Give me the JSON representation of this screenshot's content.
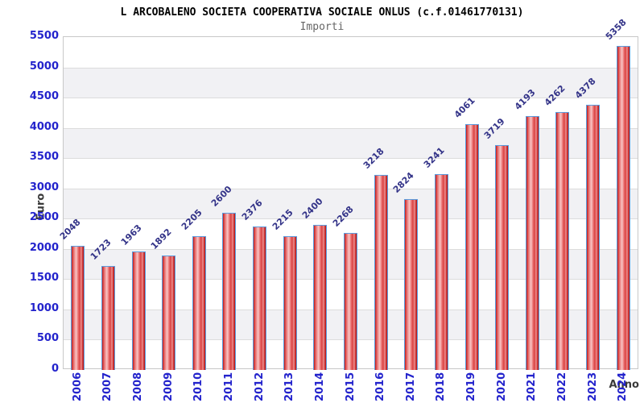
{
  "header": {
    "title": "L ARCOBALENO SOCIETA COOPERATIVA SOCIALE ONLUS (c.f.01461770131)",
    "subtitle": "Importi"
  },
  "chart_data": {
    "type": "bar",
    "title": "L ARCOBALENO SOCIETA COOPERATIVA SOCIALE ONLUS (c.f.01461770131)",
    "subtitle": "Importi",
    "categories": [
      "2006",
      "2007",
      "2008",
      "2009",
      "2010",
      "2011",
      "2012",
      "2013",
      "2014",
      "2015",
      "2016",
      "2017",
      "2018",
      "2019",
      "2020",
      "2021",
      "2022",
      "2023",
      "2024"
    ],
    "values": [
      2048,
      1723,
      1963,
      1892,
      2205,
      2600,
      2376,
      2215,
      2400,
      2268,
      3218,
      2824,
      3241,
      4061,
      3719,
      4193,
      4262,
      4378,
      5358
    ],
    "xlabel": "Anno",
    "ylabel": "Euro",
    "ylim": [
      0,
      5500
    ],
    "ytick_step": 500,
    "grid": true,
    "legend_position": "none",
    "colors": {
      "bar_fill": "#cc2222",
      "bar_fill_highlight": "#f8c4c4",
      "bar_border": "#5b9ee0",
      "tick_label": "#2323cc",
      "value_label": "#333388",
      "band_gray": "#f1f1f4",
      "gridline": "#dcdcdc",
      "plot_border": "#c8c8c8",
      "title_color": "#000000",
      "subtitle_color": "#666666",
      "axis_title_color": "#3a3a3a"
    }
  }
}
